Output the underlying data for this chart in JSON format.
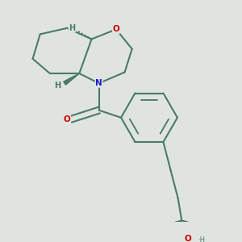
{
  "bg_color": "#e0e4e0",
  "bond_color": "#4a7a6a",
  "bond_width": 1.5,
  "atom_colors": {
    "O": "#cc0000",
    "N": "#1a1acc",
    "H": "#4a7a6a",
    "C": "#4a7a6a"
  },
  "font_size": 7.5,
  "wedge_color": "#4a7a6a"
}
